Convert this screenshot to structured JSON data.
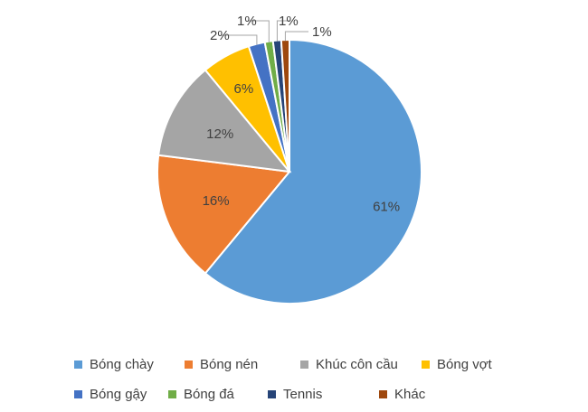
{
  "chart_data": {
    "type": "pie",
    "categories": [
      "Bóng chày",
      "Bóng nén",
      "Khúc côn cầu",
      "Bóng vợt",
      "Bóng gậy",
      "Bóng đá",
      "Tennis",
      "Khác"
    ],
    "values": [
      61,
      16,
      12,
      6,
      2,
      1,
      1,
      1
    ],
    "labels": [
      "61%",
      "16%",
      "12%",
      "6%",
      "2%",
      "1%",
      "1%",
      "1%"
    ],
    "colors": [
      "#5B9BD5",
      "#ED7D31",
      "#A5A5A5",
      "#FFC000",
      "#4472C4",
      "#70AD47",
      "#264478",
      "#9E480E"
    ],
    "legend_position": "bottom",
    "title": ""
  }
}
